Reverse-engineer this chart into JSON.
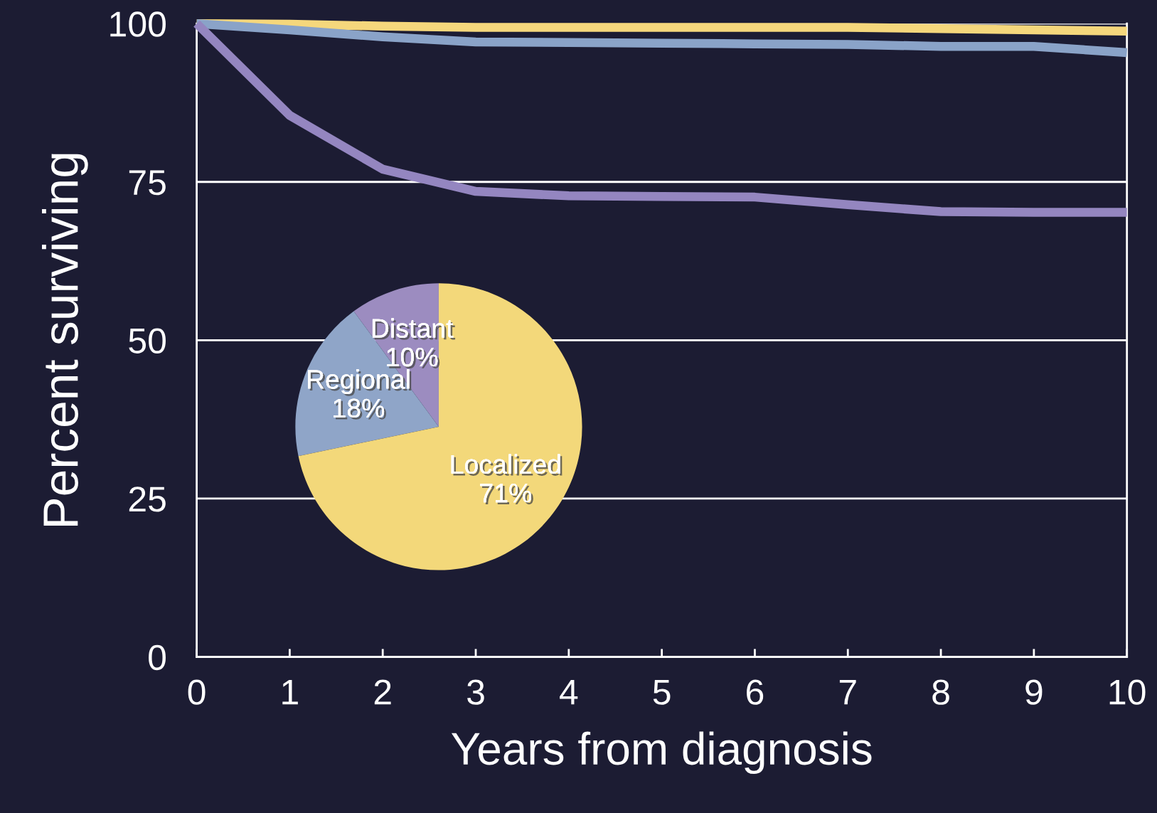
{
  "chart_data": [
    {
      "type": "line",
      "xlabel": "Years from diagnosis",
      "ylabel": "Percent surviving",
      "x": [
        0,
        1,
        2,
        3,
        4,
        5,
        6,
        7,
        8,
        9,
        10
      ],
      "series": [
        {
          "color": "#f5d77c",
          "values": [
            100,
            99.9,
            99.6,
            99.4,
            99.4,
            99.4,
            99.4,
            99.4,
            99.2,
            99.0,
            98.8
          ]
        },
        {
          "color": "#8aa3c8",
          "values": [
            100,
            99.0,
            97.9,
            97.1,
            97.0,
            96.9,
            96.8,
            96.7,
            96.4,
            96.4,
            95.4
          ]
        },
        {
          "color": "#9486c0",
          "values": [
            100,
            85.5,
            77,
            73.5,
            72.8,
            72.7,
            72.6,
            71.4,
            70.3,
            70.2,
            70.2
          ]
        }
      ],
      "xlim": [
        0,
        10
      ],
      "xticks": [
        0,
        1,
        2,
        3,
        4,
        5,
        6,
        7,
        8,
        9,
        10
      ],
      "ylim": [
        0,
        100
      ],
      "yticks": [
        0,
        25,
        50,
        75,
        100
      ],
      "grid": "y",
      "legend": false,
      "marker": "none",
      "line_style": "solid"
    },
    {
      "type": "pie",
      "categories": [
        "Distant",
        "Regional",
        "Localized"
      ],
      "values": [
        10,
        18,
        71
      ],
      "colors": [
        "#9c8cc0",
        "#8fa5c8",
        "#f3d87a"
      ],
      "value_labels": [
        "10%",
        "18%",
        "71%"
      ]
    }
  ]
}
